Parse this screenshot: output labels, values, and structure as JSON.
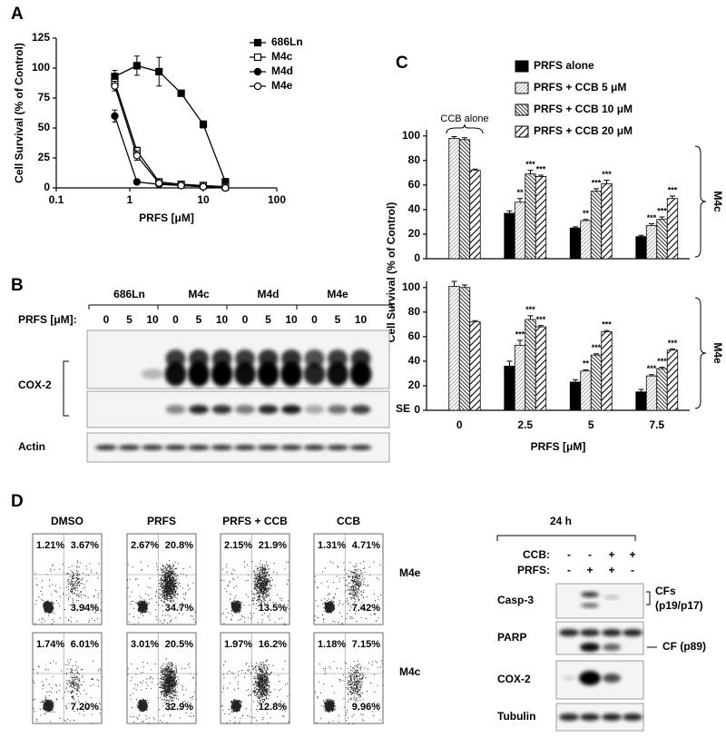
{
  "panel_labels": [
    "A",
    "B",
    "C",
    "D"
  ],
  "chart_data": [
    {
      "type": "line",
      "xlabel": "PRFS [μM]",
      "ylabel": "Cell Survival (% of Control)",
      "xscale": "log",
      "x": [
        0.625,
        1.25,
        2.5,
        5,
        10,
        20
      ],
      "xlim": [
        0.1,
        100
      ],
      "xticks": [
        0.1,
        1,
        10,
        100
      ],
      "ylim": [
        0,
        125
      ],
      "yticks": [
        0,
        25,
        50,
        75,
        100,
        125
      ],
      "legend": "top-right",
      "series": [
        {
          "name": "686Ln",
          "color": "#000000",
          "marker": "filled-square",
          "values": [
            93,
            102,
            97,
            79,
            53,
            5
          ],
          "errors": [
            5,
            8,
            12,
            2,
            3,
            3
          ]
        },
        {
          "name": "M4c",
          "color": "#000000",
          "marker": "open-square",
          "values": [
            88,
            31,
            5,
            3,
            2,
            1
          ],
          "errors": [
            4,
            3,
            1,
            1,
            0.5,
            0.5
          ]
        },
        {
          "name": "M4d",
          "color": "#000000",
          "marker": "filled-circle",
          "values": [
            60,
            5,
            3,
            2,
            1,
            0
          ],
          "errors": [
            5,
            1,
            1,
            0.5,
            0.5,
            0.5
          ]
        },
        {
          "name": "M4e",
          "color": "#000000",
          "marker": "open-circle",
          "values": [
            85,
            27,
            4,
            2,
            1,
            0
          ],
          "errors": [
            4,
            4,
            1,
            0.5,
            0.5,
            0.5
          ]
        }
      ]
    },
    {
      "type": "bar",
      "ylabel": "Cell Survival (% of Control)",
      "side_label": "M4c",
      "annotation": "CCB alone",
      "legend": "top",
      "categories": [
        null,
        null,
        null,
        null
      ],
      "ylim": [
        0,
        105
      ],
      "yticks": [
        0,
        20,
        40,
        60,
        80,
        100
      ],
      "series": [
        {
          "name": "PRFS  alone",
          "color": "#000000",
          "hatch": "solid",
          "values": [
            null,
            37,
            25,
            18
          ],
          "errors": [
            null,
            2,
            1,
            1
          ]
        },
        {
          "name": "PRFS + CCB 5 μM",
          "color": "#000000",
          "hatch": "fine",
          "values": [
            98,
            46,
            31,
            27
          ],
          "errors": [
            1.5,
            3,
            1,
            1.5
          ],
          "significance": [
            null,
            "**",
            "**",
            "***"
          ]
        },
        {
          "name": "PRFS + CCB 10 μM",
          "color": "#000000",
          "hatch": "medium",
          "values": [
            97,
            69,
            55,
            32
          ],
          "errors": [
            1.5,
            3,
            2,
            2
          ],
          "significance": [
            null,
            "***",
            "***",
            "***"
          ]
        },
        {
          "name": "PRFS + CCB 20 μM",
          "color": "#000000",
          "hatch": "wide",
          "values": [
            72,
            67,
            61,
            49
          ],
          "errors": [
            1,
            1,
            3,
            2
          ],
          "significance": [
            null,
            "***",
            "***",
            "***"
          ]
        }
      ]
    },
    {
      "type": "bar",
      "xlabel": "PRFS [μM]",
      "side_label": "M4e",
      "categories": [
        "0",
        "2.5",
        "5",
        "7.5"
      ],
      "ylim": [
        0,
        105
      ],
      "yticks": [
        0,
        20,
        40,
        60,
        80,
        100
      ],
      "series": [
        {
          "color": "#000000",
          "hatch": "solid",
          "values": [
            null,
            36,
            23,
            15
          ],
          "errors": [
            null,
            4,
            2,
            2
          ]
        },
        {
          "color": "#000000",
          "hatch": "fine",
          "values": [
            101,
            53,
            32,
            28
          ],
          "errors": [
            4,
            4,
            1,
            1
          ],
          "significance": [
            null,
            "***",
            "**",
            "***"
          ]
        },
        {
          "color": "#000000",
          "hatch": "medium",
          "values": [
            100,
            74,
            45,
            34
          ],
          "errors": [
            2,
            3,
            1,
            1
          ],
          "significance": [
            null,
            "***",
            "***",
            "***"
          ]
        },
        {
          "color": "#000000",
          "hatch": "wide",
          "values": [
            72,
            68,
            64,
            49
          ],
          "errors": [
            1,
            1,
            1,
            1
          ],
          "significance": [
            null,
            "***",
            "***",
            "***"
          ]
        }
      ]
    }
  ],
  "blot_b": {
    "cell_lines": [
      "686Ln",
      "M4c",
      "M4d",
      "M4e"
    ],
    "dose_label": "PRFS [μM]:",
    "doses": [
      "0",
      "5",
      "10",
      "0",
      "5",
      "10",
      "0",
      "5",
      "10",
      "0",
      "5",
      "10"
    ],
    "rows": [
      "COX-2",
      "Actin"
    ],
    "se_label": "SE"
  },
  "panel_d": {
    "conditions": [
      "DMSO",
      "PRFS",
      "PRFS + CCB",
      "CCB"
    ],
    "rows": [
      {
        "cell_line": "M4e",
        "quadrants": [
          [
            "1.21%",
            "3.67%",
            "3.94%"
          ],
          [
            "2.67%",
            "20.8%",
            "34.7%"
          ],
          [
            "2.15%",
            "21.9%",
            "13.5%"
          ],
          [
            "1.31%",
            "4.71%",
            "7.42%"
          ]
        ]
      },
      {
        "cell_line": "M4c",
        "quadrants": [
          [
            "1.74%",
            "6.01%",
            "7.20%"
          ],
          [
            "3.01%",
            "20.5%",
            "32.9%"
          ],
          [
            "1.97%",
            "16.2%",
            "12.8%"
          ],
          [
            "1.18%",
            "7.15%",
            "9.96%"
          ]
        ]
      }
    ],
    "western": {
      "time": "24 h",
      "treatments": [
        {
          "label": "CCB:",
          "signs": [
            "-",
            "-",
            "+",
            "+"
          ]
        },
        {
          "label": "PRFS:",
          "signs": [
            "-",
            "+",
            "+",
            "-"
          ]
        }
      ],
      "rows": [
        "Casp-3",
        "PARP",
        "COX-2",
        "Tubulin"
      ],
      "fragments": [
        "CFs",
        "(p19/p17)",
        "CF (p89)"
      ]
    }
  }
}
